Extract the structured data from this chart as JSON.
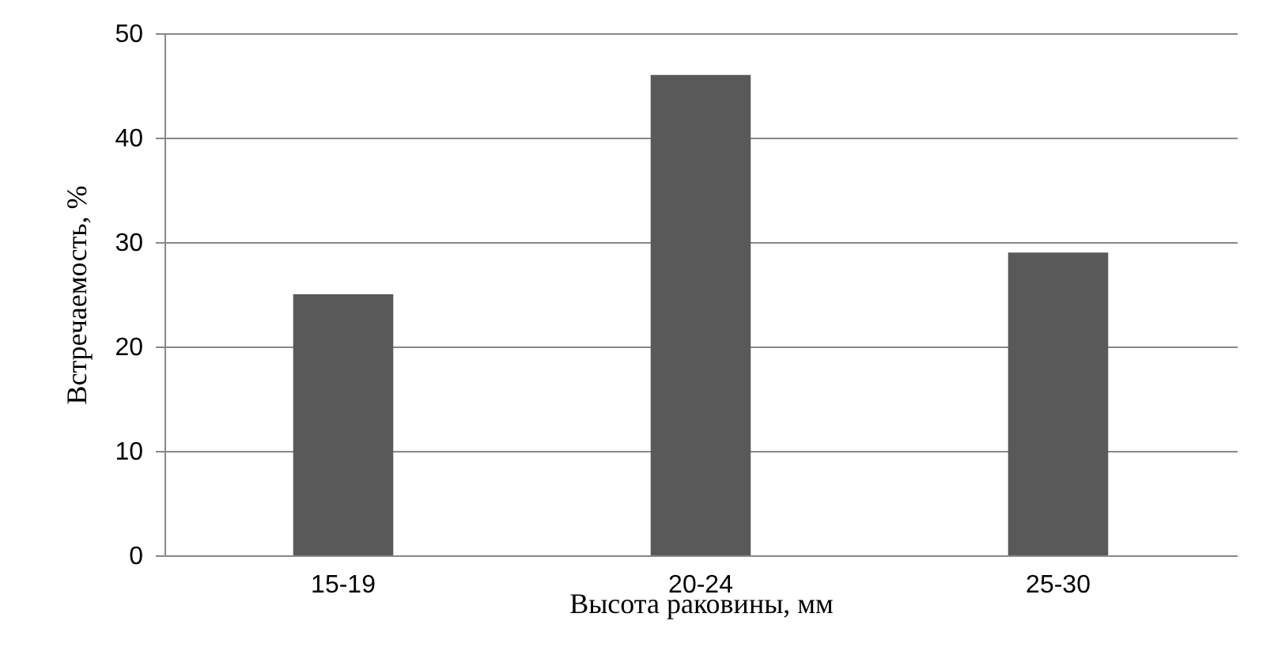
{
  "chart_data": {
    "type": "bar",
    "xlabel": "Высота раковины, мм",
    "ylabel": "Встречаемость, %",
    "categories": [
      "15-19",
      "20-24",
      "25-30"
    ],
    "values": [
      25,
      46,
      29
    ],
    "color": "#595959",
    "ylim": [
      0,
      50
    ],
    "yticks": [
      0,
      10,
      20,
      30,
      40,
      50
    ],
    "grid": "y"
  }
}
